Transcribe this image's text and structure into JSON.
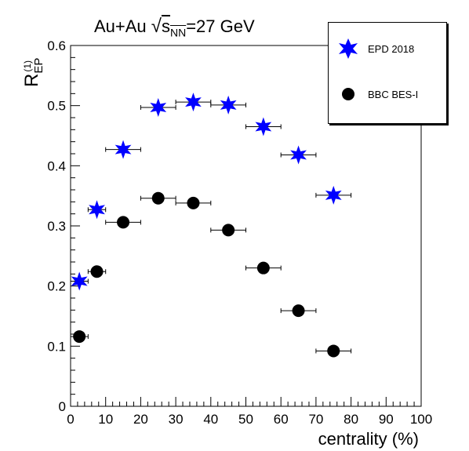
{
  "chart_data": {
    "type": "scatter",
    "title_main": "Au+Au ",
    "title_sqrt_s": "s",
    "title_sub": "NN",
    "title_tail": "=27 GeV",
    "ylabel_main": "R",
    "ylabel_sub": "EP",
    "ylabel_sup": "(1)",
    "xlabel": "centrality (%)",
    "xlim": [
      0,
      100
    ],
    "ylim": [
      0,
      0.6
    ],
    "xticks": [
      "0",
      "10",
      "20",
      "30",
      "40",
      "50",
      "60",
      "70",
      "80",
      "90",
      "100"
    ],
    "yticks": [
      "0",
      "0.1",
      "0.2",
      "0.3",
      "0.4",
      "0.5",
      "0.6"
    ],
    "grid": false,
    "legend_position": "top-right",
    "series": [
      {
        "name": "EPD 2018",
        "marker": "star",
        "color": "#0000ff",
        "x": [
          2.5,
          7.5,
          15,
          25,
          35,
          45,
          55,
          65,
          75
        ],
        "xerr": [
          2.5,
          2.5,
          5,
          5,
          5,
          5,
          5,
          5,
          5
        ],
        "y": [
          0.208,
          0.327,
          0.427,
          0.497,
          0.506,
          0.501,
          0.465,
          0.418,
          0.351
        ]
      },
      {
        "name": "BBC BES-I",
        "marker": "circle",
        "color": "#000000",
        "x": [
          2.5,
          7.5,
          15,
          25,
          35,
          45,
          55,
          65,
          75
        ],
        "xerr": [
          2.5,
          2.5,
          5,
          5,
          5,
          5,
          5,
          5,
          5
        ],
        "y": [
          0.116,
          0.224,
          0.306,
          0.346,
          0.338,
          0.293,
          0.23,
          0.159,
          0.092
        ]
      }
    ]
  }
}
